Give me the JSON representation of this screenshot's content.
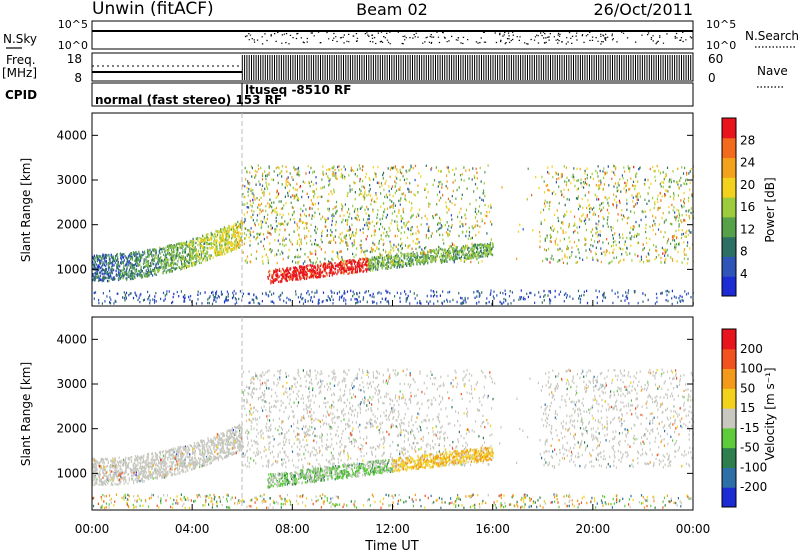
{
  "header": {
    "station": "Unwin (fitACF)",
    "beam": "Beam 02",
    "date": "26/Oct/2011"
  },
  "noise_panel": {
    "left_label": "N.Sky",
    "right_label": "N.Search",
    "left_ticks": [
      "10^5",
      "10^0"
    ],
    "right_ticks": [
      "10^5",
      "10^0"
    ]
  },
  "freq_panel": {
    "left_label_1": "Freq.",
    "left_label_2": "[MHz]",
    "right_label": "Nave",
    "left_ticks": [
      "18",
      "8"
    ],
    "right_ticks": [
      "60",
      "0"
    ]
  },
  "cpid_panel": {
    "label": "CPID",
    "segments": [
      {
        "text": "normal (fast stereo) 153 RF",
        "start": "00:00",
        "end": "06:00"
      },
      {
        "text": "ltuseq -8510 RF",
        "start": "06:00",
        "end": "24:00"
      }
    ]
  },
  "chart_data": [
    {
      "type": "heatmap",
      "name": "power",
      "ylabel": "Slant Range [km]",
      "yticks": [
        "4000",
        "3000",
        "2000",
        "1000"
      ],
      "ylim": [
        180,
        4500
      ],
      "colorbar_label": "Power [dB]",
      "colorbar_ticks": [
        "28",
        "24",
        "20",
        "16",
        "12",
        "8",
        "4"
      ],
      "colors": [
        "#1c2bd4",
        "#2f55b8",
        "#2e6f63",
        "#57a14a",
        "#9ccc3b",
        "#f2d21c",
        "#f3a21b",
        "#f26a1d",
        "#e8141e"
      ]
    },
    {
      "type": "heatmap",
      "name": "velocity",
      "ylabel": "Slant Range [km]",
      "yticks": [
        "4000",
        "3000",
        "2000",
        "1000"
      ],
      "ylim": [
        180,
        4500
      ],
      "colorbar_label": "Velocity [m s⁻¹]",
      "colorbar_ticks": [
        "200",
        "100",
        "50",
        "15",
        "-15",
        "-50",
        "-100",
        "-200"
      ],
      "colors": [
        "#1c2bd4",
        "#2f6fa8",
        "#2e7e4e",
        "#5ecb3a",
        "#c8c8c0",
        "#f3d21b",
        "#f39a1b",
        "#f2521d",
        "#e8141e"
      ]
    }
  ],
  "x_axis": {
    "label": "Time UT",
    "ticks": [
      "00:00",
      "04:00",
      "08:00",
      "12:00",
      "16:00",
      "20:00",
      "00:00"
    ],
    "range_hours": [
      0,
      24
    ]
  },
  "mode_change_hour": 6
}
